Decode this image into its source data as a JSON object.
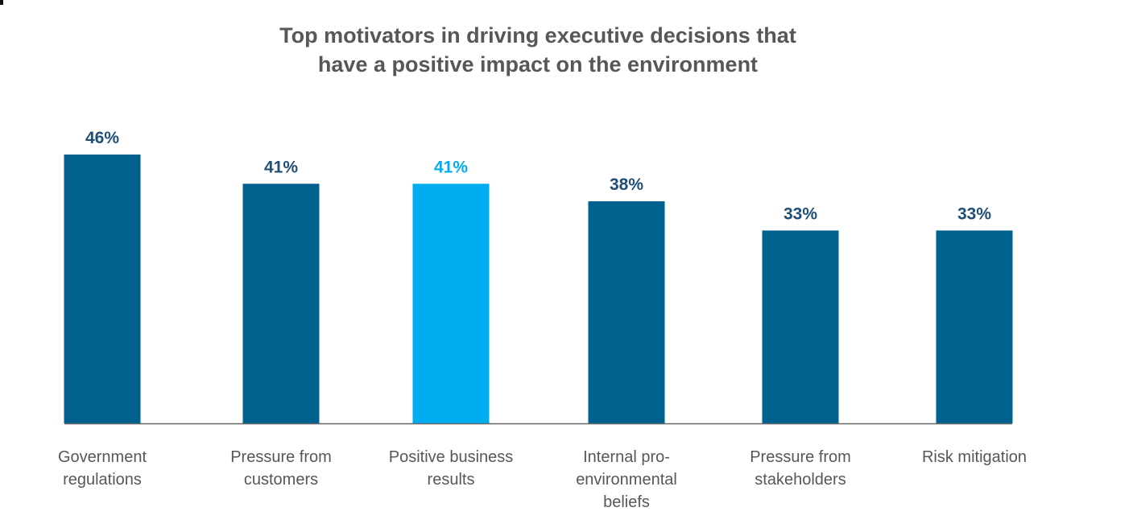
{
  "chart_data": {
    "type": "bar",
    "title_lines": [
      "Top motivators in driving executive decisions that",
      "have a positive impact on the environment"
    ],
    "categories": [
      [
        "Government",
        "regulations"
      ],
      [
        "Pressure from",
        "customers"
      ],
      [
        "Positive business",
        "results"
      ],
      [
        "Internal pro-",
        "environmental",
        "beliefs"
      ],
      [
        "Pressure from",
        "stakeholders"
      ],
      [
        "Risk mitigation"
      ]
    ],
    "values": [
      46,
      41,
      41,
      38,
      33,
      33
    ],
    "value_labels": [
      "46%",
      "41%",
      "41%",
      "38%",
      "33%",
      "33%"
    ],
    "highlight_index": 2,
    "colors": {
      "bar": "#00618F",
      "highlight": "#00ADEF",
      "label": "#1F4E79",
      "highlight_label": "#00ADEF",
      "axis": "#666666"
    },
    "ylim": [
      0,
      46
    ]
  }
}
